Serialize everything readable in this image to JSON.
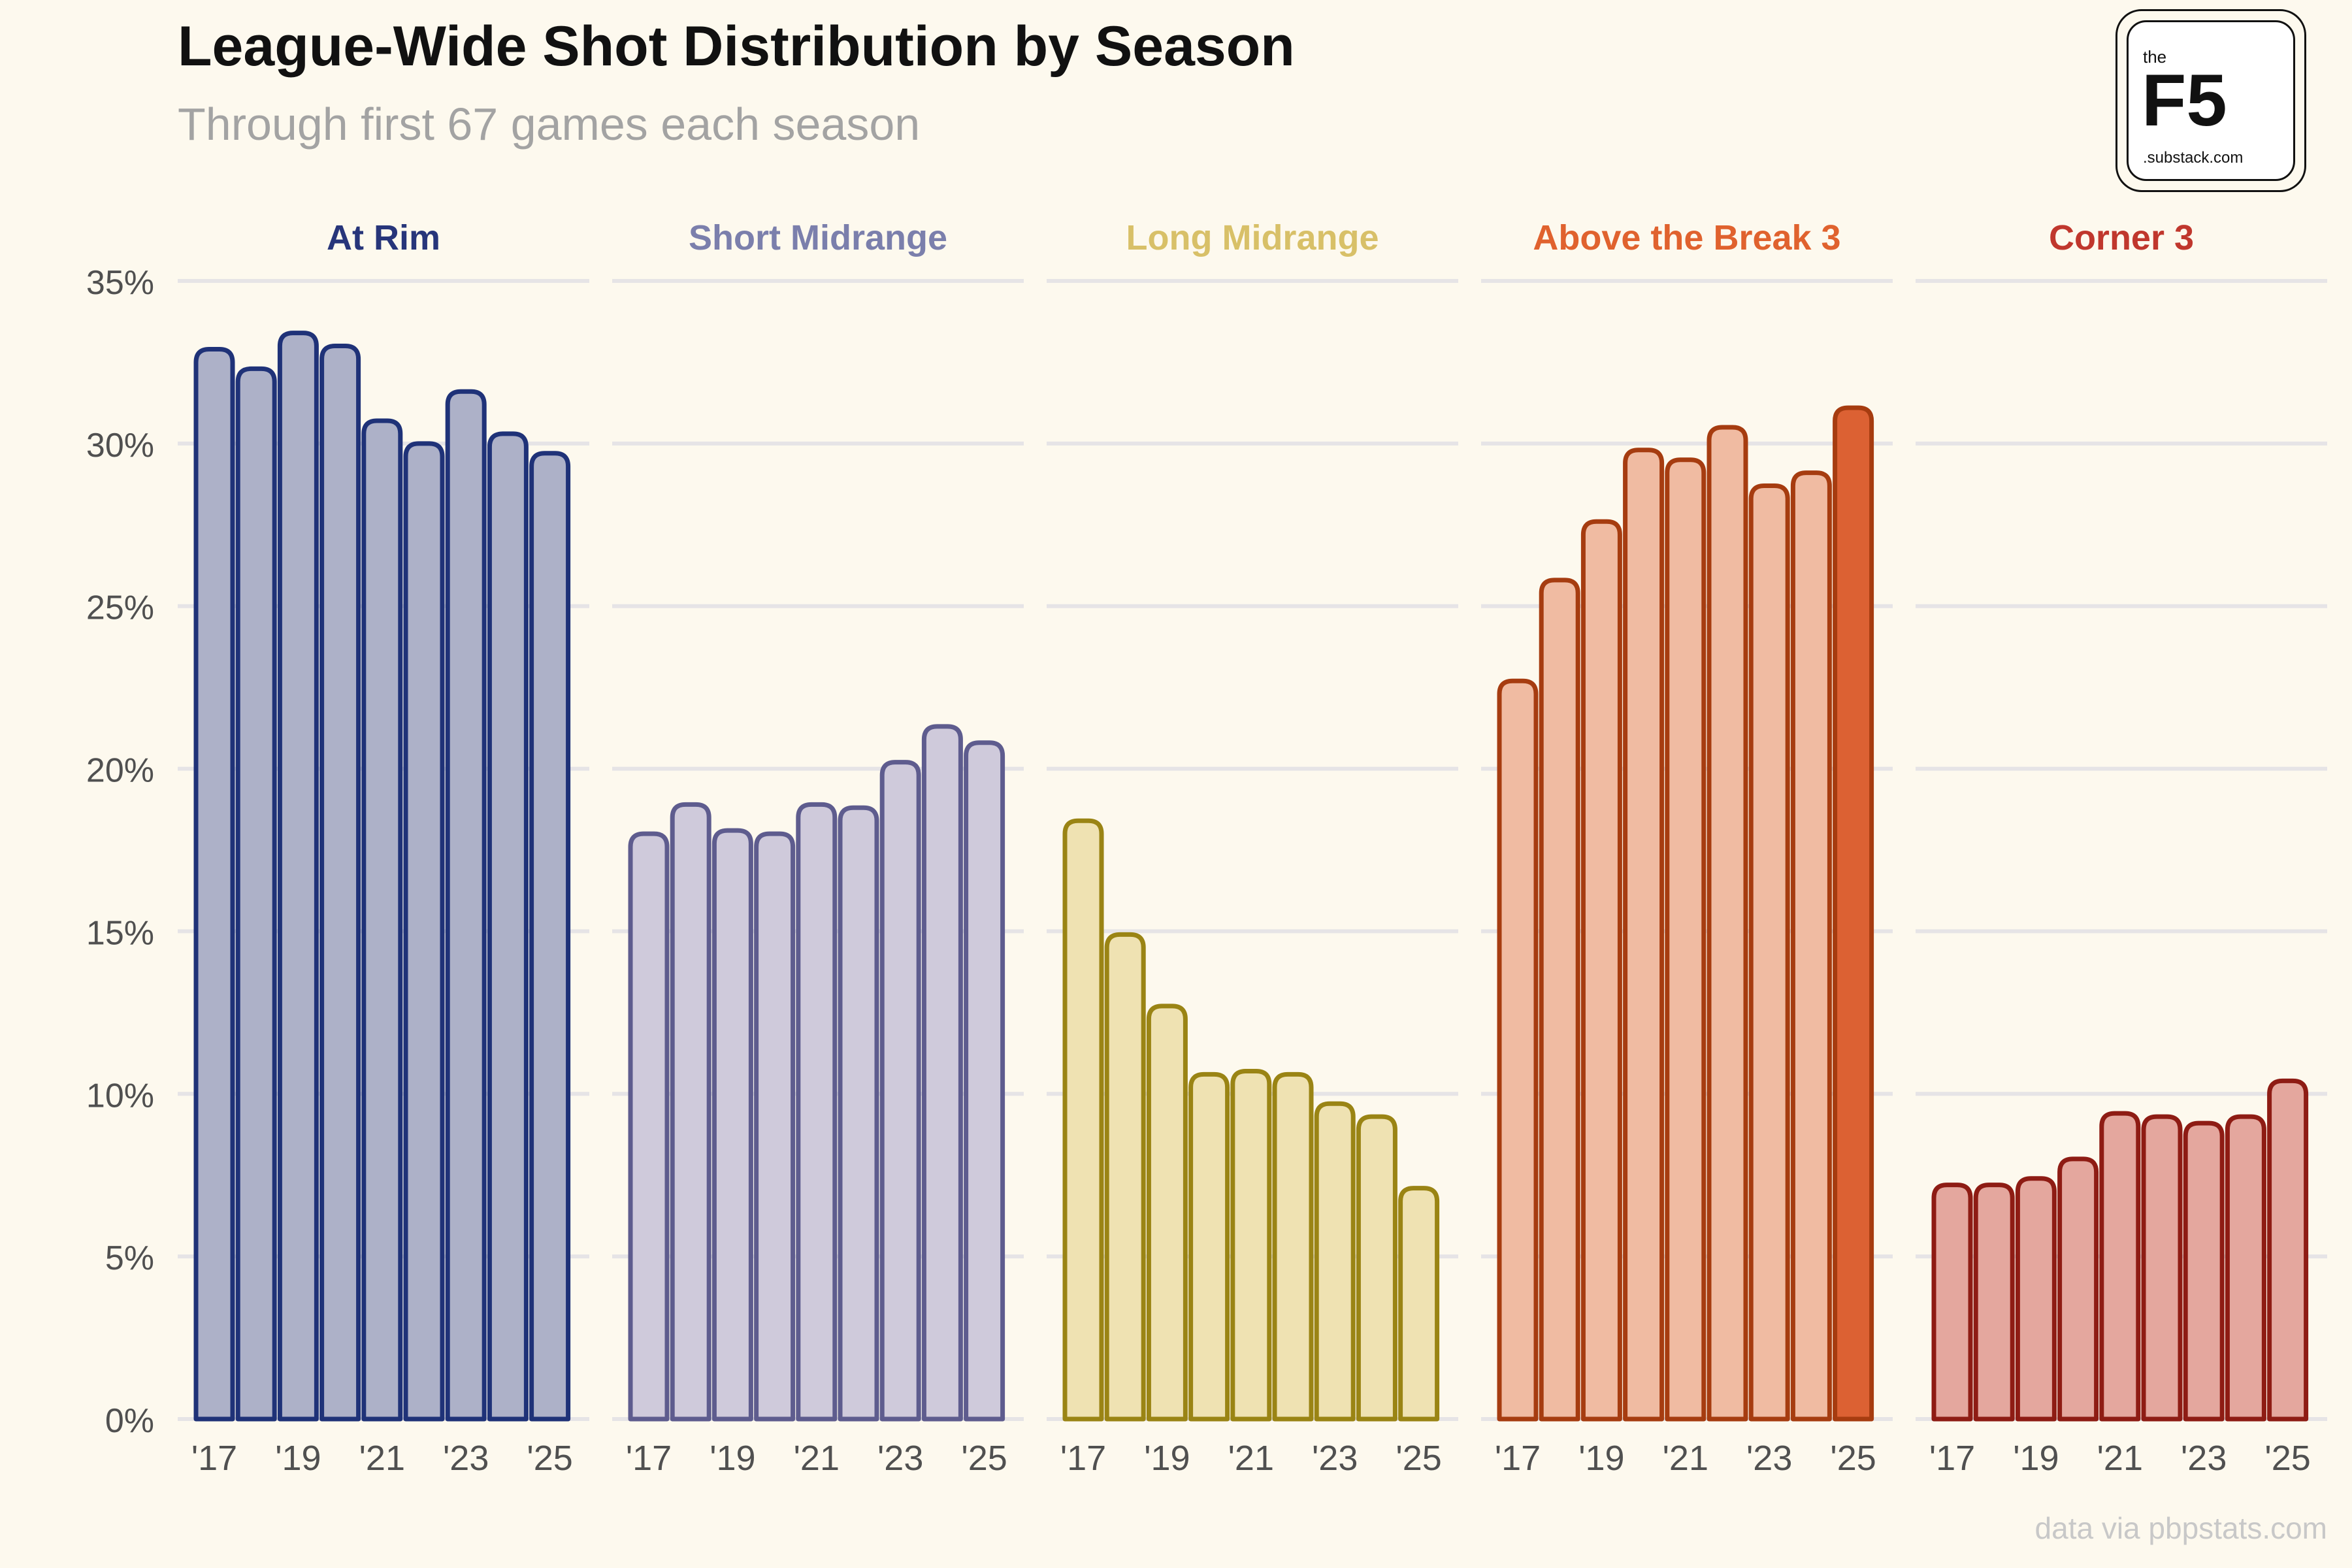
{
  "title": "League-Wide Shot Distribution by Season",
  "subtitle": "Through first 67 games each season",
  "logo": {
    "the": "the",
    "name": "F5",
    "domain": ".substack.com"
  },
  "credit": "data via pbpstats.com",
  "chart_data": {
    "type": "bar",
    "ylim": [
      0,
      35
    ],
    "yticks": [
      0,
      5,
      10,
      15,
      20,
      25,
      30,
      35
    ],
    "ytick_labels": [
      "0%",
      "5%",
      "10%",
      "15%",
      "20%",
      "25%",
      "30%",
      "35%"
    ],
    "grid": true,
    "categories": [
      "'17",
      "'18",
      "'19",
      "'20",
      "'21",
      "'22",
      "'23",
      "'24",
      "'25"
    ],
    "xtick_labels": [
      "'17",
      "",
      "'19",
      "",
      "'21",
      "",
      "'23",
      "",
      "'25"
    ],
    "series": [
      {
        "name": "At Rim",
        "label_color": "#27357a",
        "fill": "#adb1c8",
        "stroke": "#1f3278",
        "highlight_fill": "#adb1c8",
        "values": [
          32.9,
          32.3,
          33.4,
          33.0,
          30.7,
          30.0,
          31.6,
          30.3,
          29.7
        ]
      },
      {
        "name": "Short Midrange",
        "label_color": "#7b7fac",
        "fill": "#cfcadb",
        "stroke": "#5e5c8e",
        "highlight_fill": "#cfcadb",
        "values": [
          18.0,
          18.9,
          18.1,
          18.0,
          18.9,
          18.8,
          20.2,
          21.3,
          20.8
        ]
      },
      {
        "name": "Long Midrange",
        "label_color": "#d8c068",
        "fill": "#efe2b2",
        "stroke": "#9a8414",
        "highlight_fill": "#efe2b2",
        "values": [
          18.4,
          14.9,
          12.7,
          10.6,
          10.7,
          10.6,
          9.7,
          9.3,
          7.1
        ]
      },
      {
        "name": "Above the Break 3",
        "label_color": "#e0622e",
        "fill": "#f0bba2",
        "stroke": "#a63c10",
        "highlight_fill": "#dc6133",
        "values": [
          22.7,
          25.8,
          27.6,
          29.8,
          29.5,
          30.5,
          28.7,
          29.1,
          31.1
        ]
      },
      {
        "name": "Corner 3",
        "label_color": "#c0372d",
        "fill": "#e4a79e",
        "stroke": "#8e1c14",
        "highlight_fill": "#e4a79e",
        "values": [
          7.2,
          7.2,
          7.4,
          8.0,
          9.4,
          9.3,
          9.1,
          9.3,
          10.4
        ]
      }
    ]
  }
}
